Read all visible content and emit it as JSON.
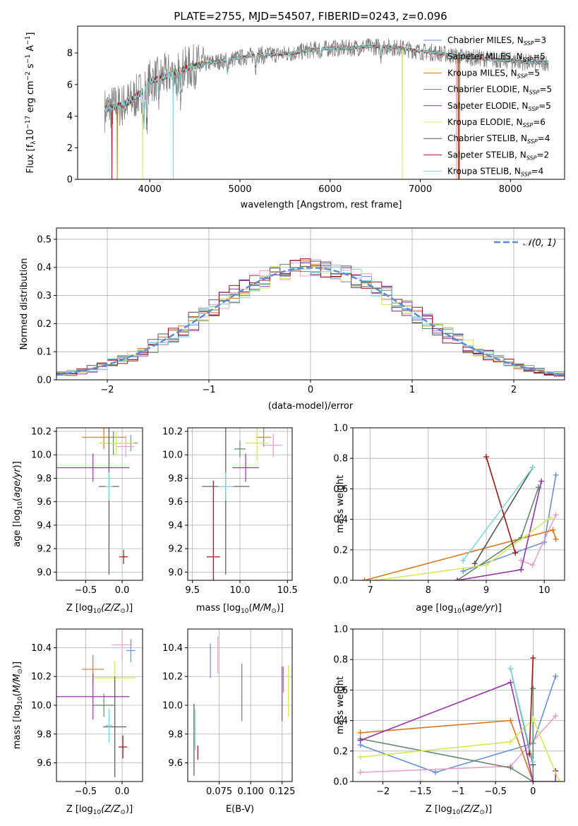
{
  "chart_data": [
    {
      "id": "spectrum",
      "type": "line",
      "title": "PLATE=2755, MJD=54507, FIBERID=0243, z=0.096",
      "xlabel": "wavelength [Angstrom, rest frame]",
      "ylabel": "Flux [fλ10⁻¹⁷ erg cm⁻² s⁻¹ A⁻¹]",
      "xlim": [
        3200,
        8600
      ],
      "ylim": [
        0,
        9.7
      ],
      "xticks": [
        4000,
        5000,
        6000,
        7000,
        8000
      ],
      "yticks": [
        0,
        2,
        4,
        6,
        8
      ],
      "legend_position": "right",
      "legend": [
        {
          "base": "Chabrier MILES",
          "n": "3",
          "color": "#6a8fdc"
        },
        {
          "base": "Salpeter MILES",
          "n": "5",
          "color": "#e8a0c8"
        },
        {
          "base": "Kroupa MILES",
          "n": "5",
          "color": "#d8781c"
        },
        {
          "base": "Chabrier ELODIE",
          "n": "5",
          "color": "#5f8a66"
        },
        {
          "base": "Salpeter ELODIE",
          "n": "5",
          "color": "#9833a8"
        },
        {
          "base": "Kroupa ELODIE",
          "n": "6",
          "color": "#d4e85a"
        },
        {
          "base": "Chabrier STELIB",
          "n": "4",
          "color": "#555555"
        },
        {
          "base": "Salpeter STELIB",
          "n": "2",
          "color": "#a01518"
        },
        {
          "base": "Kroupa STELIB",
          "n": "4",
          "color": "#7fd8dc"
        }
      ],
      "observed_series": {
        "color": "#808080"
      },
      "profile_x": [
        3500,
        3600,
        3700,
        3800,
        3900,
        4000,
        4200,
        4400,
        4600,
        4800,
        5000,
        5200,
        5400,
        5600,
        5800,
        6000,
        6200,
        6400,
        6600,
        6800,
        7000,
        7200,
        7400,
        7600,
        7800,
        8000,
        8200
      ],
      "profile_y": [
        4.4,
        4.6,
        4.7,
        5.0,
        5.5,
        6.2,
        6.6,
        7.0,
        7.3,
        7.5,
        7.7,
        7.9,
        7.9,
        8.0,
        8.2,
        8.3,
        8.3,
        8.4,
        8.4,
        8.3,
        8.1,
        8.0,
        7.8,
        7.7,
        7.6,
        7.5,
        7.4
      ]
    },
    {
      "id": "residuals",
      "type": "histogram",
      "xlabel": "(data-model)/error",
      "ylabel": "Normed distribution",
      "xlim": [
        -2.5,
        2.5
      ],
      "ylim": [
        0,
        0.54
      ],
      "xticks": [
        -2,
        -1,
        0,
        1,
        2
      ],
      "yticks": [
        0.0,
        0.1,
        0.2,
        0.3,
        0.4,
        0.5
      ],
      "reference_curve": {
        "label": "𝒩(0, 1)",
        "color": "#5b8bd8"
      },
      "bin_width": 0.1
    },
    {
      "id": "age_vs_Z",
      "type": "errorbar",
      "xlabel": "Z [log₁₀(Z/Z⊙)]",
      "ylabel": "age  [log₁₀(age/yr)]",
      "xlim": [
        -0.9,
        0.28
      ],
      "ylim": [
        8.93,
        10.23
      ],
      "xticks": [
        -0.5,
        0.0
      ],
      "yticks": [
        9.0,
        9.2,
        9.4,
        9.6,
        9.8,
        10.0,
        10.2
      ],
      "points": [
        {
          "color": "#6a8fdc",
          "x": 0.12,
          "xerr": 0.09,
          "y": 10.1,
          "yerr": 0.07
        },
        {
          "color": "#e8a0c8",
          "x": 0.05,
          "xerr": 0.12,
          "y": 10.07,
          "yerr": 0.09
        },
        {
          "color": "#d8781c",
          "x": -0.25,
          "xerr": 0.3,
          "y": 10.15,
          "yerr": 0.1
        },
        {
          "color": "#5f8a66",
          "x": -0.12,
          "xerr": 0.12,
          "y": 10.1,
          "yerr": 0.1
        },
        {
          "color": "#9833a8",
          "x": -0.4,
          "xerr": 0.5,
          "y": 9.89,
          "yerr": 0.12
        },
        {
          "color": "#d4e85a",
          "x": -0.08,
          "xerr": 0.25,
          "y": 10.1,
          "yerr": 0.1
        },
        {
          "color": "#555555",
          "x": -0.18,
          "xerr": 0.14,
          "y": 9.73,
          "yerr": 0.75
        },
        {
          "color": "#a01518",
          "x": 0.02,
          "xerr": 0.06,
          "y": 9.13,
          "yerr": 0.06
        },
        {
          "color": "#7fd8dc",
          "x": -0.18,
          "xerr": 0.05,
          "y": 9.73,
          "yerr": 0.12
        }
      ]
    },
    {
      "id": "age_vs_mass",
      "type": "errorbar",
      "xlabel": "mass [log₁₀(M/M⊙)]",
      "ylabel": "",
      "xlim": [
        9.45,
        10.55
      ],
      "ylim": [
        8.93,
        10.23
      ],
      "xticks": [
        9.5,
        10.0,
        10.5
      ],
      "yticks": [
        9.0,
        9.2,
        9.4,
        9.6,
        9.8,
        10.0,
        10.2
      ],
      "points": [
        {
          "color": "#6a8fdc",
          "x": 10.35,
          "xerr": 0.06,
          "y": 10.08,
          "yerr": 0.08
        },
        {
          "color": "#e8a0c8",
          "x": 10.35,
          "xerr": 0.1,
          "y": 10.08,
          "yerr": 0.1
        },
        {
          "color": "#d8781c",
          "x": 10.25,
          "xerr": 0.08,
          "y": 10.15,
          "yerr": 0.08
        },
        {
          "color": "#5f8a66",
          "x": 10.0,
          "xerr": 0.06,
          "y": 10.05,
          "yerr": 0.07
        },
        {
          "color": "#9833a8",
          "x": 10.06,
          "xerr": 0.14,
          "y": 9.89,
          "yerr": 0.12
        },
        {
          "color": "#d4e85a",
          "x": 10.18,
          "xerr": 0.12,
          "y": 10.1,
          "yerr": 0.16
        },
        {
          "color": "#555555",
          "x": 9.85,
          "xerr": 0.25,
          "y": 9.73,
          "yerr": 0.75
        },
        {
          "color": "#a01518",
          "x": 9.72,
          "xerr": 0.07,
          "y": 9.13,
          "yerr": 0.65
        },
        {
          "color": "#7fd8dc",
          "x": 9.85,
          "xerr": 0.08,
          "y": 9.73,
          "yerr": 0.12
        }
      ]
    },
    {
      "id": "massweight_vs_age",
      "type": "line",
      "xlabel": "age  [log₁₀(age/yr)]",
      "ylabel": "mass weight",
      "xlim": [
        6.7,
        10.35
      ],
      "ylim": [
        0,
        1
      ],
      "xticks": [
        7,
        8,
        9,
        10
      ],
      "yticks": [
        0.0,
        0.2,
        0.4,
        0.6,
        0.8,
        1.0
      ],
      "series": [
        {
          "color": "#6a8fdc",
          "x": [
            8.6,
            10.0,
            10.2
          ],
          "y": [
            0.06,
            0.25,
            0.69
          ]
        },
        {
          "color": "#e8a0c8",
          "x": [
            9.6,
            9.8,
            10.2
          ],
          "y": [
            0.13,
            0.1,
            0.43
          ]
        },
        {
          "color": "#d8781c",
          "x": [
            6.9,
            10.15,
            10.2
          ],
          "y": [
            0.0,
            0.33,
            0.27
          ]
        },
        {
          "color": "#5f8a66",
          "x": [
            8.5,
            9.6,
            9.9
          ],
          "y": [
            0.0,
            0.28,
            0.61
          ]
        },
        {
          "color": "#9833a8",
          "x": [
            8.5,
            9.6,
            9.95
          ],
          "y": [
            0.0,
            0.07,
            0.65
          ]
        },
        {
          "color": "#d4e85a",
          "x": [
            7.1,
            9.0,
            10.1
          ],
          "y": [
            0.0,
            0.1,
            0.41
          ]
        },
        {
          "color": "#555555",
          "x": [
            8.8,
            9.8
          ],
          "y": [
            0.11,
            0.74
          ]
        },
        {
          "color": "#a01518",
          "x": [
            9.0,
            9.5
          ],
          "y": [
            0.81,
            0.18
          ]
        },
        {
          "color": "#7fd8dc",
          "x": [
            8.6,
            9.8
          ],
          "y": [
            0.13,
            0.74
          ]
        }
      ]
    },
    {
      "id": "mass_vs_Z",
      "type": "errorbar",
      "xlabel": "Z [log₁₀(Z/Z⊙)]",
      "ylabel": "mass [log₁₀(M/M⊙)]",
      "xlim": [
        -0.9,
        0.28
      ],
      "ylim": [
        9.47,
        10.53
      ],
      "xticks": [
        -0.5,
        0.0
      ],
      "yticks": [
        9.6,
        9.8,
        10.0,
        10.2,
        10.4
      ],
      "points": [
        {
          "color": "#6a8fdc",
          "x": 0.12,
          "xerr": 0.06,
          "y": 10.38,
          "yerr": 0.08
        },
        {
          "color": "#e8a0c8",
          "x": 0.0,
          "xerr": 0.14,
          "y": 10.42,
          "yerr": 0.1
        },
        {
          "color": "#d8781c",
          "x": -0.4,
          "xerr": 0.15,
          "y": 10.25,
          "yerr": 0.1
        },
        {
          "color": "#5f8a66",
          "x": -0.25,
          "xerr": 0.15,
          "y": 10.0,
          "yerr": 0.08
        },
        {
          "color": "#9833a8",
          "x": -0.4,
          "xerr": 0.5,
          "y": 10.06,
          "yerr": 0.16
        },
        {
          "color": "#d4e85a",
          "x": -0.1,
          "xerr": 0.28,
          "y": 10.19,
          "yerr": 0.12
        },
        {
          "color": "#555555",
          "x": -0.1,
          "xerr": 0.16,
          "y": 9.85,
          "yerr": 0.35
        },
        {
          "color": "#a01518",
          "x": 0.01,
          "xerr": 0.06,
          "y": 9.71,
          "yerr": 0.08
        },
        {
          "color": "#7fd8dc",
          "x": -0.18,
          "xerr": 0.05,
          "y": 9.86,
          "yerr": 0.12
        }
      ]
    },
    {
      "id": "mass_vs_EBV",
      "type": "errorbar",
      "xlabel": "E(B-V)",
      "ylabel": "",
      "xlim": [
        0.05,
        0.133
      ],
      "ylim": [
        9.47,
        10.53
      ],
      "xticks": [
        0.075,
        0.1,
        0.125
      ],
      "xtick_labels": [
        "0.075",
        "0.100",
        "0.125"
      ],
      "yticks": [
        9.6,
        9.8,
        10.0,
        10.2,
        10.4
      ],
      "points": [
        {
          "color": "#6a8fdc",
          "x": 0.068,
          "y": 10.31,
          "yerr": 0.12
        },
        {
          "color": "#e8a0c8",
          "x": 0.074,
          "y": 10.35,
          "yerr": 0.13
        },
        {
          "color": "#d8781c",
          "x": 0.126,
          "y": 10.18,
          "yerr": 0.09
        },
        {
          "color": "#5f8a66",
          "x": 0.093,
          "y": 10.09,
          "yerr": 0.2
        },
        {
          "color": "#9833a8",
          "x": 0.125,
          "y": 10.08,
          "yerr": 0.19
        },
        {
          "color": "#d4e85a",
          "x": 0.13,
          "y": 10.1,
          "yerr": 0.18
        },
        {
          "color": "#555555",
          "x": 0.055,
          "y": 9.76,
          "yerr": 0.25
        },
        {
          "color": "#a01518",
          "x": 0.058,
          "y": 9.67,
          "yerr": 0.05
        },
        {
          "color": "#7fd8dc",
          "x": 0.056,
          "y": 9.83,
          "yerr": 0.14
        }
      ]
    },
    {
      "id": "massweight_vs_Z",
      "type": "line",
      "xlabel": "Z [log₁₀(Z/Z⊙)]",
      "ylabel": "mass weight",
      "xlim": [
        -2.4,
        0.42
      ],
      "ylim": [
        0,
        1
      ],
      "xticks": [
        -2.0,
        -1.5,
        -1.0,
        -0.5,
        0.0
      ],
      "yticks": [
        0.0,
        0.2,
        0.4,
        0.6,
        0.8,
        1.0
      ],
      "series": [
        {
          "color": "#6a8fdc",
          "x": [
            -2.3,
            -1.3,
            0.0,
            0.3
          ],
          "y": [
            0.24,
            0.06,
            0.25,
            0.69
          ]
        },
        {
          "color": "#e8a0c8",
          "x": [
            -2.3,
            -0.3,
            0.3
          ],
          "y": [
            0.06,
            0.1,
            0.43
          ]
        },
        {
          "color": "#d8781c",
          "x": [
            -2.3,
            -0.3,
            0.0
          ],
          "y": [
            0.32,
            0.4,
            0.0
          ]
        },
        {
          "color": "#5f8a66",
          "x": [
            -2.3,
            -0.3,
            0.0,
            0.0
          ],
          "y": [
            0.28,
            0.09,
            0.0,
            0.61
          ]
        },
        {
          "color": "#9833a8",
          "x": [
            -2.3,
            -0.3,
            0.0,
            0.3,
            0.3
          ],
          "y": [
            0.27,
            0.65,
            0.0,
            0.0,
            0.07
          ]
        },
        {
          "color": "#d4e85a",
          "x": [
            -2.3,
            -0.3,
            0.0,
            0.35
          ],
          "y": [
            0.16,
            0.26,
            0.41,
            0.0
          ]
        },
        {
          "color": "#555555",
          "x": [
            -0.3,
            0.0
          ],
          "y": [
            0.74,
            0.11
          ]
        },
        {
          "color": "#a01518",
          "x": [
            0.0,
            -0.05
          ],
          "y": [
            0.81,
            0.18
          ]
        },
        {
          "color": "#7fd8dc",
          "x": [
            -0.3,
            0.0
          ],
          "y": [
            0.74,
            0.13
          ]
        }
      ]
    }
  ]
}
